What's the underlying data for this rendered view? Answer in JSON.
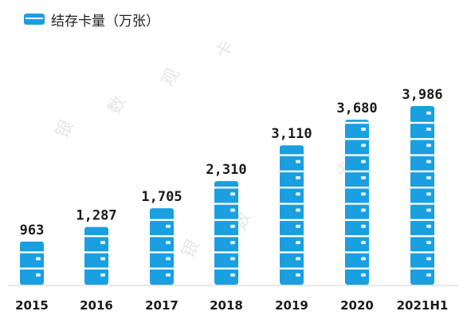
{
  "chart_data": {
    "type": "bar",
    "legend": "结存卡量（万张）",
    "legend_position": "top-left",
    "categories": [
      "2015",
      "2016",
      "2017",
      "2018",
      "2019",
      "2020",
      "2021H1"
    ],
    "values": [
      963,
      1287,
      1705,
      2310,
      3110,
      3680,
      3986
    ],
    "value_labels": [
      "963",
      "1,287",
      "1,705",
      "2,310",
      "3,110",
      "3,680",
      "3,986"
    ],
    "grid": false,
    "bar_color": "#1a9fe0",
    "ylim": [
      0,
      4000
    ]
  },
  "watermark": [
    "银",
    "数",
    "观",
    "卡"
  ]
}
